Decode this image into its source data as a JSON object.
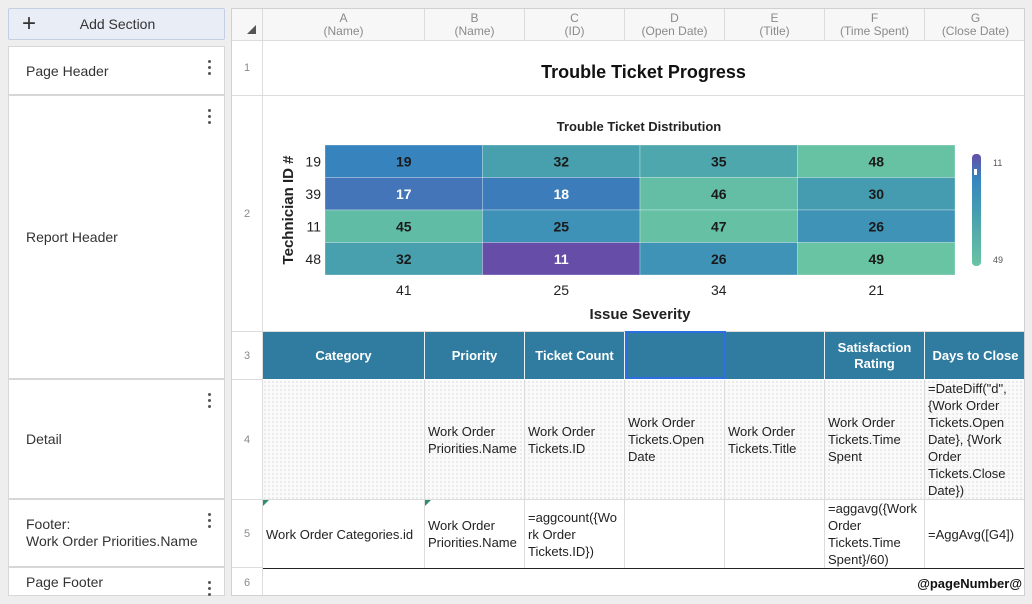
{
  "left_panel": {
    "add_section_label": "Add Section",
    "sections": [
      {
        "name": "Page Header"
      },
      {
        "name": "Report Header"
      },
      {
        "name": "Detail"
      },
      {
        "name": "Footer:\nWork Order Priorities.Name"
      },
      {
        "name": "Page Footer"
      }
    ]
  },
  "columns": [
    {
      "letter": "A",
      "field": "(Name)"
    },
    {
      "letter": "B",
      "field": "(Name)"
    },
    {
      "letter": "C",
      "field": "(ID)"
    },
    {
      "letter": "D",
      "field": "(Open Date)"
    },
    {
      "letter": "E",
      "field": "(Title)"
    },
    {
      "letter": "F",
      "field": "(Time Spent)"
    },
    {
      "letter": "G",
      "field": "(Close Date)"
    }
  ],
  "rows": [
    "1",
    "2",
    "3",
    "4",
    "5",
    "6"
  ],
  "report_title": "Trouble Ticket Progress",
  "chart_data": {
    "type": "heatmap",
    "title": "Trouble Ticket Distribution",
    "xlabel": "Issue Severity",
    "ylabel": "Technician ID #",
    "x_categories": [
      "41",
      "25",
      "34",
      "21"
    ],
    "y_categories": [
      "19",
      "39",
      "11",
      "48"
    ],
    "values": [
      [
        19,
        32,
        35,
        48
      ],
      [
        17,
        18,
        46,
        30
      ],
      [
        45,
        25,
        47,
        26
      ],
      [
        32,
        11,
        26,
        49
      ]
    ],
    "color_range": [
      11,
      49
    ],
    "legend": {
      "min_label": "11",
      "max_label": "49",
      "placement": "right"
    }
  },
  "table_header": [
    "Category",
    "Priority",
    "Ticket Count",
    "",
    "",
    "Satisfaction Rating",
    "Days to Close"
  ],
  "detail_row": [
    "",
    "Work Order Priorities.Name",
    "Work Order Tickets.ID",
    "Work Order Tickets.Open Date",
    "Work Order Tickets.Title",
    "Work Order Tickets.Time Spent",
    "=DateDiff(\"d\", {Work Order Tickets.Open Date}, {Work Order Tickets.Close Date})"
  ],
  "footer_row": [
    "Work Order Categories.id",
    "Work Order Priorities.Name",
    "=aggcount({Work Order Tickets.ID})",
    "",
    "",
    "=aggavg({Work Order Tickets.Time Spent}/60)",
    "=AggAvg([G4])"
  ],
  "page_footer_text": "@pageNumber@",
  "colors": {
    "header_bg": "#2f7ca0",
    "selection": "#2b6fe0"
  }
}
